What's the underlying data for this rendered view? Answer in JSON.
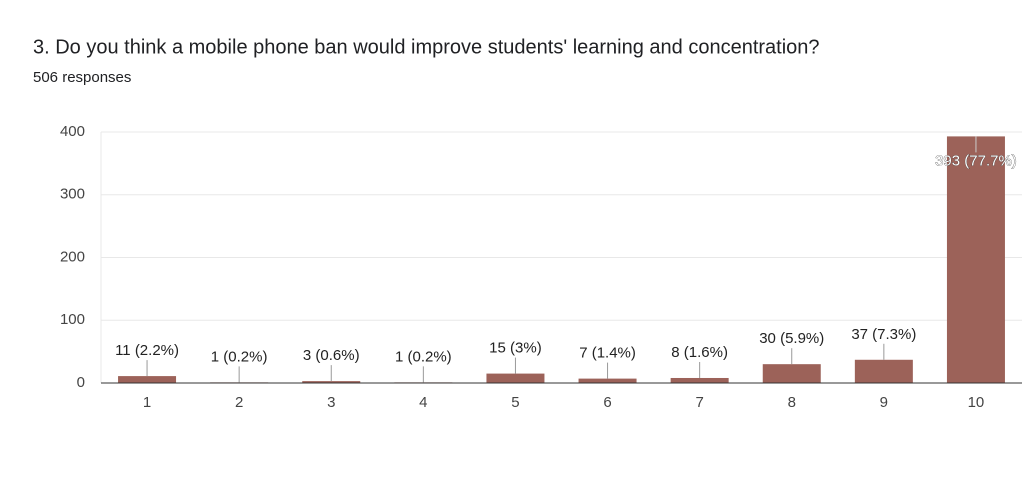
{
  "chart_data": {
    "type": "bar",
    "title": "3. Do you think a mobile phone ban would improve students' learning and concentration?",
    "subtitle": "506 responses",
    "categories": [
      "1",
      "2",
      "3",
      "4",
      "5",
      "6",
      "7",
      "8",
      "9",
      "10"
    ],
    "values": [
      11,
      1,
      3,
      1,
      15,
      7,
      8,
      30,
      37,
      393
    ],
    "value_labels": [
      "11 (2.2%)",
      "1 (0.2%)",
      "3 (0.6%)",
      "1 (0.2%)",
      "15 (3%)",
      "7 (1.4%)",
      "8 (1.6%)",
      "30 (5.9%)",
      "37 (7.3%)",
      "393 (77.7%)"
    ],
    "color": "#9c6259",
    "ylim": [
      0,
      400
    ],
    "yticks": [
      0,
      100,
      200,
      300,
      400
    ],
    "grid": true
  }
}
